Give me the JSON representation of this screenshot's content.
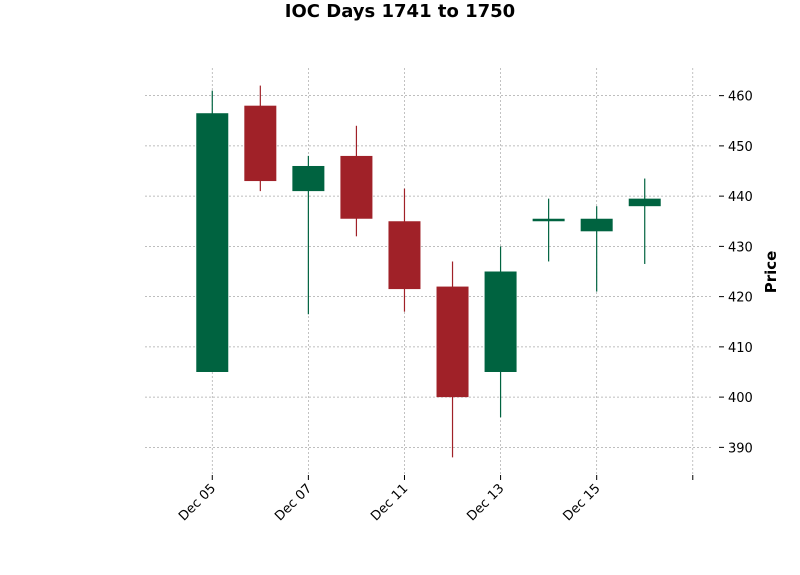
{
  "chart_data": {
    "type": "candlestick",
    "title": "IOC Days 1741 to 1750",
    "xlabel": "",
    "ylabel": "Price",
    "ylim": [
      384.5,
      465.5
    ],
    "yticks": [
      390,
      400,
      410,
      420,
      430,
      440,
      450,
      460
    ],
    "grid": true,
    "y_axis_position": "right",
    "x_tick_labels": [
      {
        "index": 0,
        "label": "Dec 05"
      },
      {
        "index": 2,
        "label": "Dec 07"
      },
      {
        "index": 4,
        "label": "Dec 11"
      },
      {
        "index": 6,
        "label": "Dec 13"
      },
      {
        "index": 8,
        "label": "Dec 15"
      },
      {
        "index": 10,
        "label": ""
      }
    ],
    "xlim": [
      -1.4,
      10.4
    ],
    "colors": {
      "up": "#006340",
      "down": "#a02128"
    },
    "candles": [
      {
        "open": 405.0,
        "high": 461.0,
        "low": 405.0,
        "close": 456.5
      },
      {
        "open": 458.0,
        "high": 462.0,
        "low": 441.0,
        "close": 443.0
      },
      {
        "open": 441.0,
        "high": 448.0,
        "low": 416.5,
        "close": 446.0
      },
      {
        "open": 448.0,
        "high": 454.0,
        "low": 432.0,
        "close": 435.5
      },
      {
        "open": 435.0,
        "high": 441.5,
        "low": 417.0,
        "close": 421.5
      },
      {
        "open": 422.0,
        "high": 427.0,
        "low": 388.0,
        "close": 400.0
      },
      {
        "open": 405.0,
        "high": 430.0,
        "low": 396.0,
        "close": 425.0
      },
      {
        "open": 435.0,
        "high": 439.5,
        "low": 427.0,
        "close": 435.5
      },
      {
        "open": 433.0,
        "high": 438.0,
        "low": 421.0,
        "close": 435.5
      },
      {
        "open": 438.0,
        "high": 443.5,
        "low": 426.5,
        "close": 439.5
      }
    ]
  }
}
